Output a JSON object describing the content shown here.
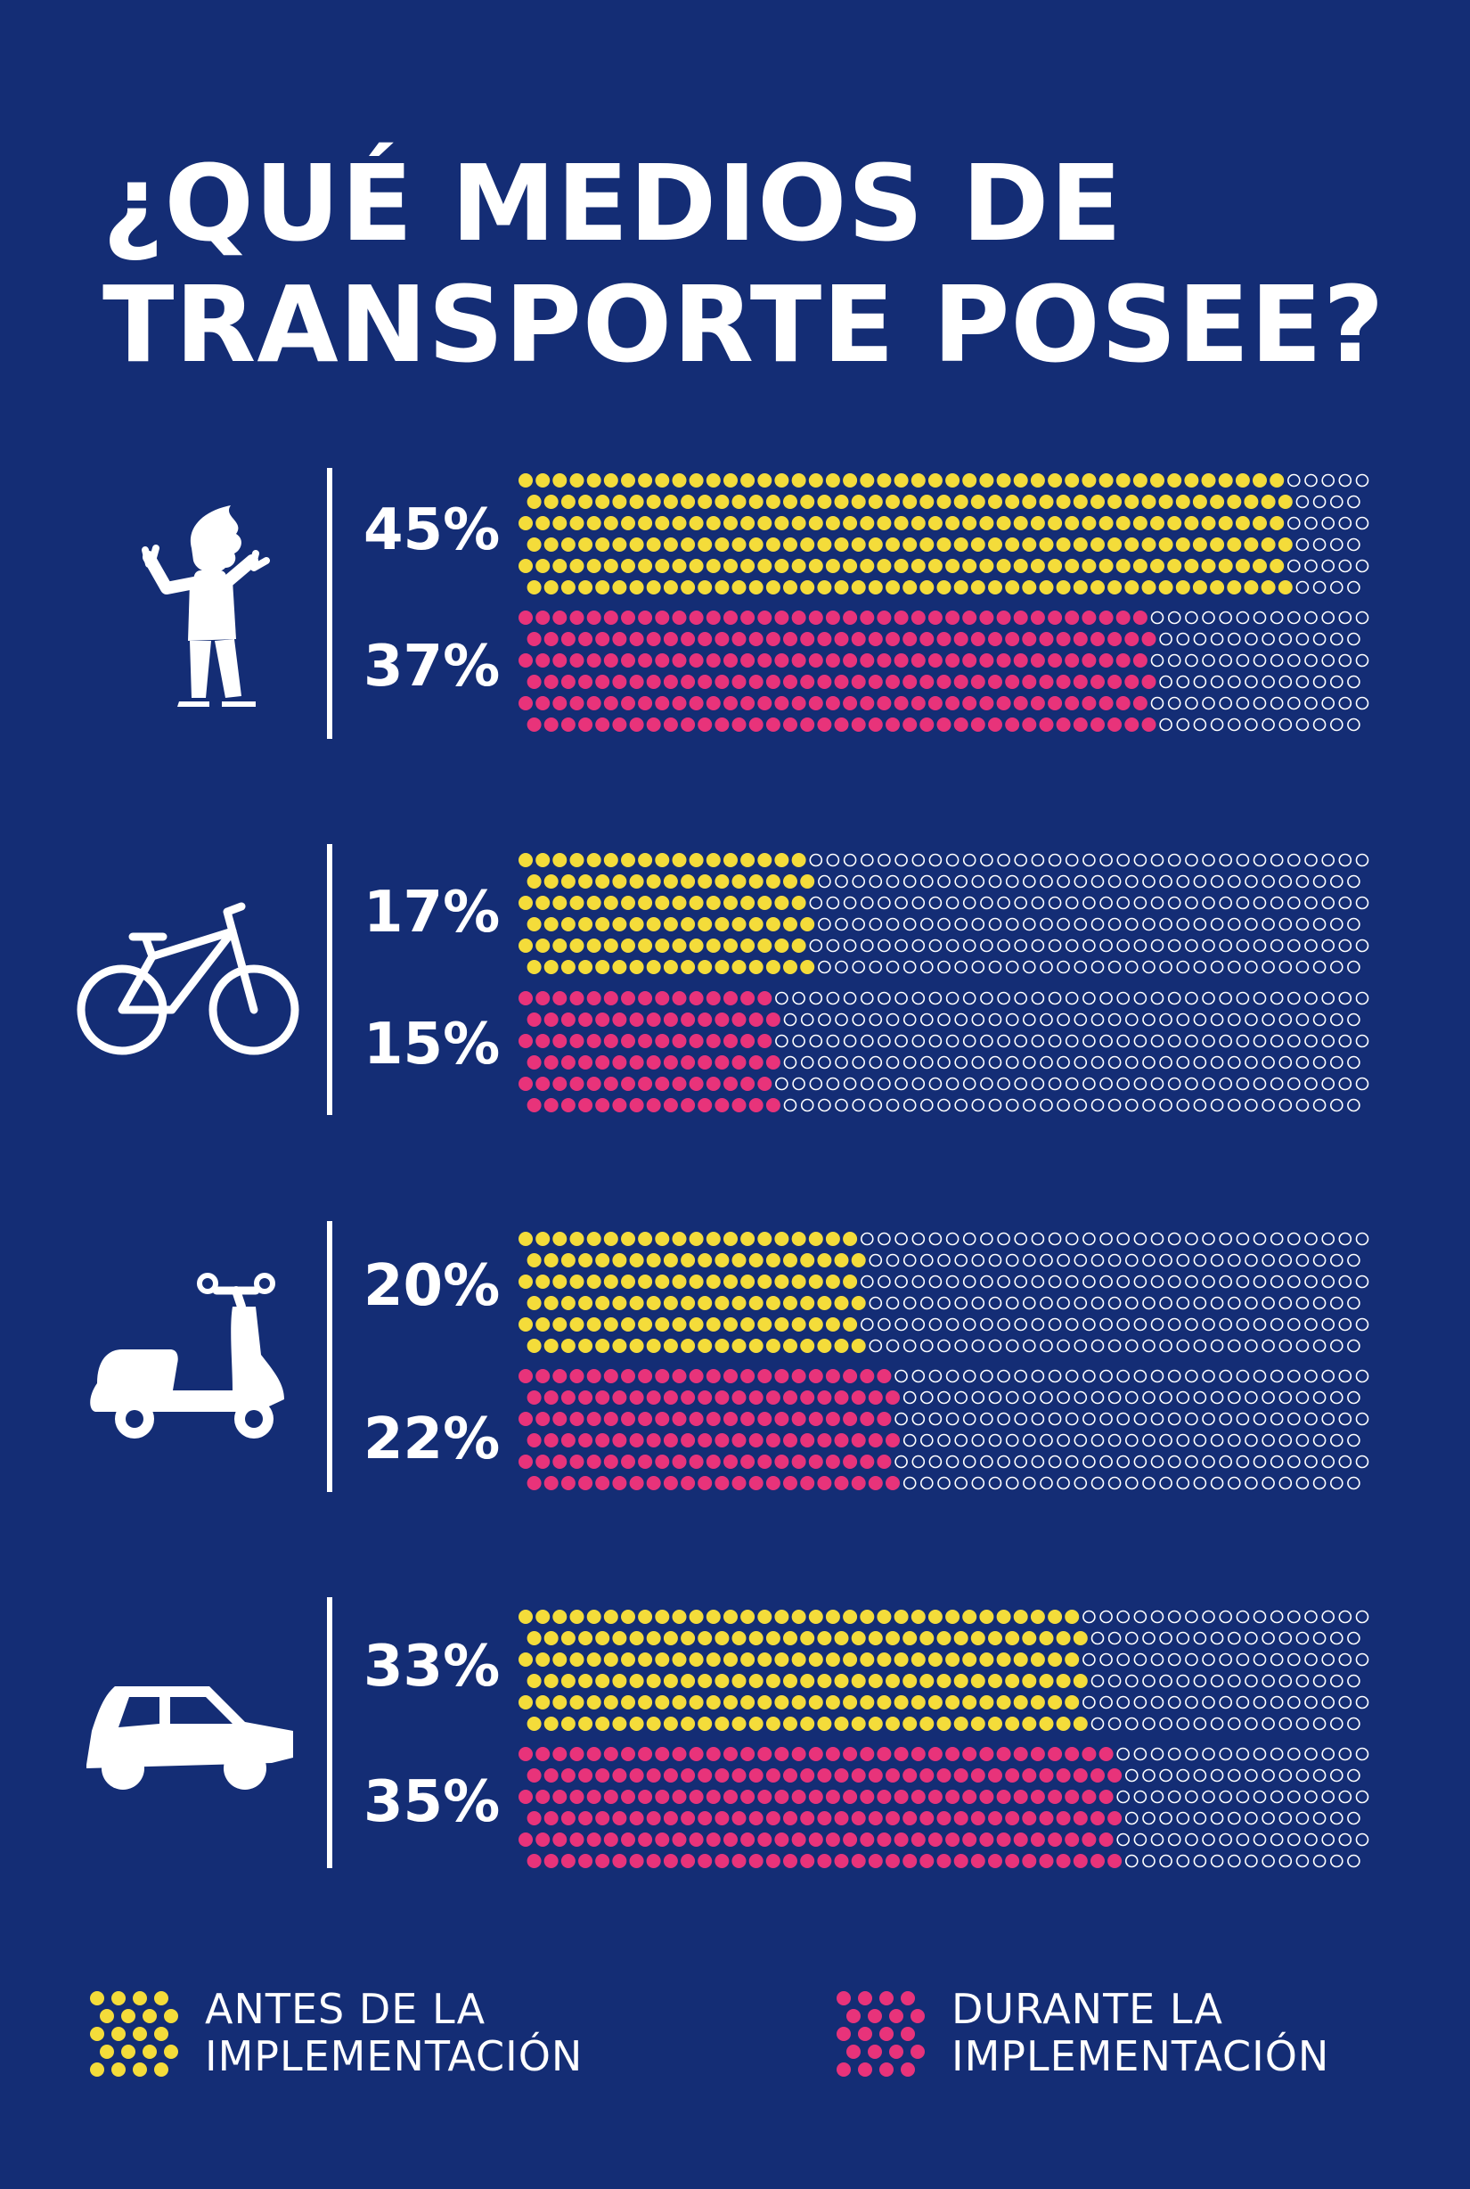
{
  "title": {
    "line1": "¿QUÉ MEDIOS DE",
    "line2": "TRANSPORTE POSEE?"
  },
  "colors": {
    "background": "#142d75",
    "before": "#f4dc3a",
    "during": "#e8337a",
    "empty": "#ffffff"
  },
  "legend": {
    "before": {
      "line1": "ANTES DE LA",
      "line2": "IMPLEMENTACIÓN"
    },
    "during": {
      "line1": "DURANTE LA",
      "line2": "IMPLEMENTACIÓN"
    }
  },
  "chart_data": {
    "type": "bar",
    "title": "¿QUÉ MEDIOS DE TRANSPORTE POSEE?",
    "categories": [
      "walking-person-icon",
      "bicycle-icon",
      "scooter-icon",
      "car-icon"
    ],
    "series": [
      {
        "name": "ANTES DE LA IMPLEMENTACIÓN",
        "values": [
          45,
          17,
          20,
          33
        ],
        "labels": [
          "45%",
          "17%",
          "20%",
          "33%"
        ]
      },
      {
        "name": "DURANTE LA IMPLEMENTACIÓN",
        "values": [
          37,
          15,
          22,
          35
        ],
        "labels": [
          "37%",
          "15%",
          "22%",
          "35%"
        ]
      }
    ],
    "xlim": [
      0,
      50
    ],
    "legend_position": "bottom",
    "grid": false
  }
}
